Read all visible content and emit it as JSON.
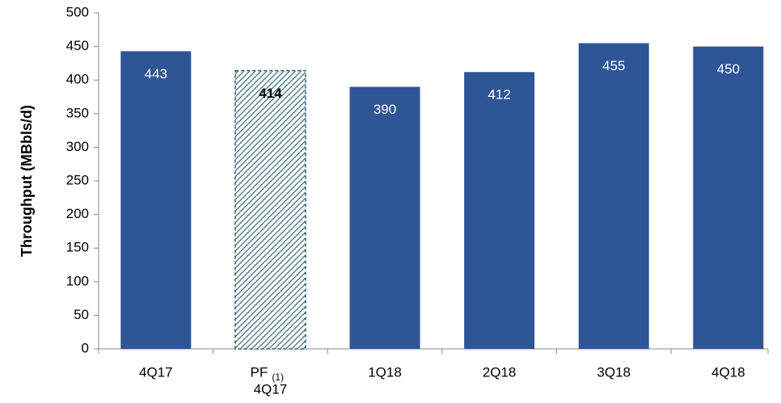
{
  "chart_data": {
    "type": "bar",
    "y_axis_label": "Throughput (MBbls/d)",
    "categories": [
      "4Q17",
      [
        "PF",
        "4Q17"
      ],
      "1Q18",
      "2Q18",
      "3Q18",
      "4Q18"
    ],
    "category_notes": [
      null,
      "(1)",
      null,
      null,
      null,
      null
    ],
    "values": [
      443,
      414,
      390,
      412,
      455,
      450
    ],
    "bar_styles": [
      "solid",
      "hatched",
      "solid",
      "solid",
      "solid",
      "solid"
    ],
    "color": "#2e5596",
    "hatch_color": "#2b5a6e",
    "ylim": [
      0,
      500
    ],
    "yticks": [
      0,
      50,
      100,
      150,
      200,
      250,
      300,
      350,
      400,
      450,
      500
    ]
  }
}
